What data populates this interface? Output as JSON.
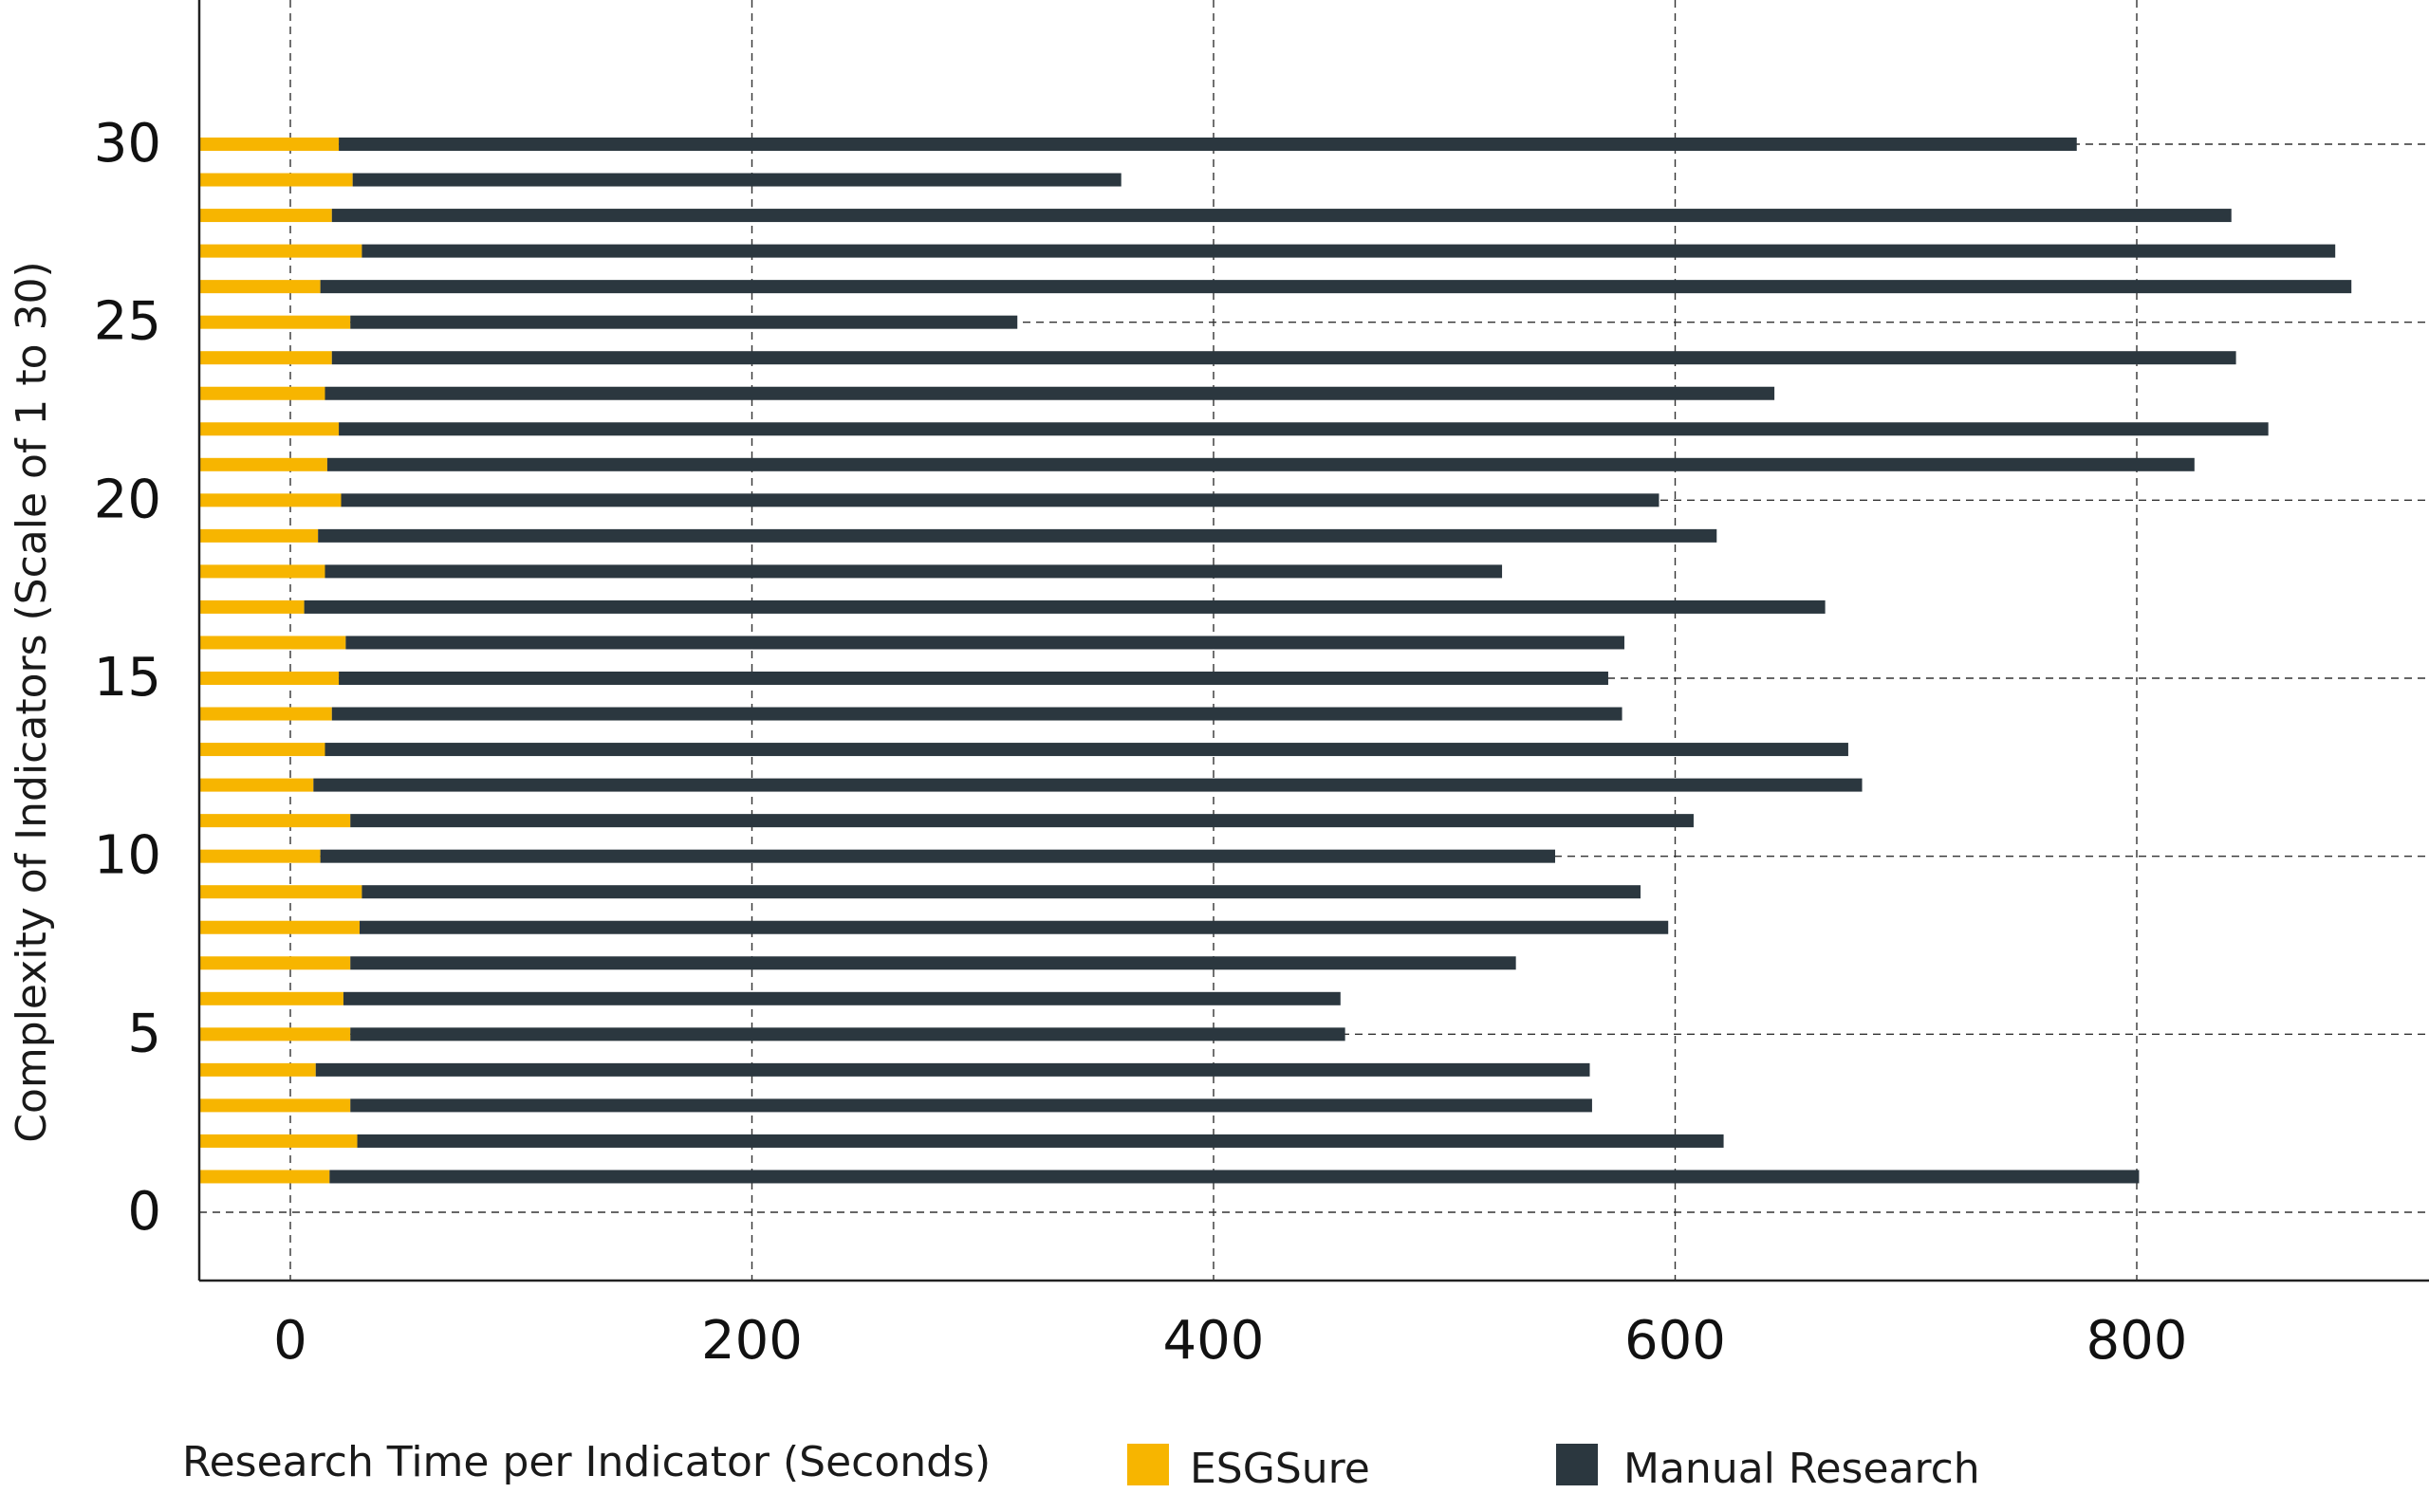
{
  "chart_data": {
    "type": "bar",
    "orientation": "horizontal",
    "stacked": true,
    "xlabel": "Research Time per Indicator (Seconds)",
    "ylabel": "Complexity of Indicators (Scale of 1 to 30)",
    "x_ticks": [
      "0",
      "200",
      "400",
      "600",
      "800"
    ],
    "y_ticks": [
      "0",
      "5",
      "10",
      "15",
      "20",
      "25",
      "30"
    ],
    "xlim": [
      -40,
      930
    ],
    "ylim": [
      -2,
      34
    ],
    "grid": true,
    "legend_position": "bottom",
    "categories": [
      1,
      2,
      3,
      4,
      5,
      6,
      7,
      8,
      9,
      10,
      11,
      12,
      13,
      14,
      15,
      16,
      17,
      18,
      19,
      20,
      21,
      22,
      23,
      24,
      25,
      26,
      27,
      28,
      29,
      30
    ],
    "series": [
      {
        "name": "ESGSure",
        "color": "#F7B500",
        "values": [
          17,
          29,
          26,
          11,
          26,
          23,
          26,
          30,
          31,
          13,
          26,
          10,
          15,
          18,
          21,
          24,
          6,
          15,
          12,
          22,
          16,
          21,
          15,
          18,
          26,
          13,
          31,
          18,
          27,
          21
        ]
      },
      {
        "name": "Manual Research",
        "color": "#2B373F",
        "values": [
          784,
          592,
          538,
          552,
          431,
          432,
          505,
          567,
          554,
          535,
          582,
          671,
          660,
          559,
          550,
          554,
          659,
          510,
          606,
          571,
          809,
          836,
          628,
          825,
          289,
          880,
          855,
          823,
          333,
          753
        ]
      }
    ]
  }
}
